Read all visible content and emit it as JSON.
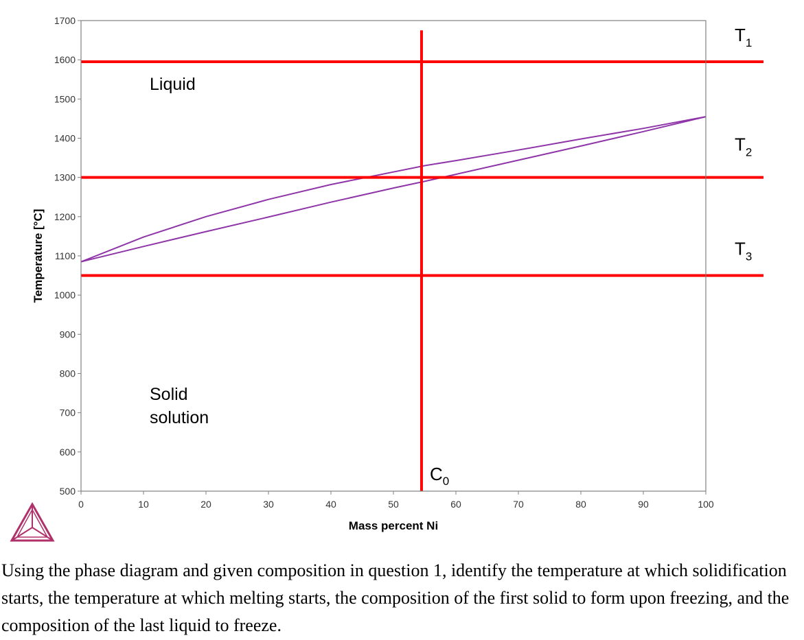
{
  "chart_data": {
    "type": "line",
    "xlabel": "Mass percent Ni",
    "ylabel": "Temperature [°C]",
    "xlim": [
      0,
      100
    ],
    "ylim": [
      500,
      1700
    ],
    "x_ticks": [
      0,
      10,
      20,
      30,
      40,
      50,
      60,
      70,
      80,
      90,
      100
    ],
    "y_ticks": [
      500,
      600,
      700,
      800,
      900,
      1000,
      1100,
      1200,
      1300,
      1400,
      1500,
      1600,
      1700
    ],
    "grid": false,
    "curve_color": "#8e35a8",
    "line_color": "#ff0000",
    "series": [
      {
        "x": [
          0,
          10,
          20,
          30,
          40,
          50,
          55,
          60,
          70,
          80,
          90,
          100
        ],
        "y": [
          1085,
          1148,
          1200,
          1244,
          1282,
          1314,
          1330,
          1343,
          1370,
          1398,
          1425,
          1455
        ]
      },
      {
        "x": [
          0,
          10,
          20,
          30,
          40,
          50,
          55,
          60,
          70,
          80,
          90,
          100
        ],
        "y": [
          1085,
          1124,
          1162,
          1199,
          1237,
          1273,
          1290,
          1308,
          1344,
          1380,
          1417,
          1455
        ]
      }
    ],
    "horizontal_lines": [
      {
        "y": 1595,
        "label": "T",
        "sub": "1"
      },
      {
        "y": 1300,
        "label": "T",
        "sub": "2"
      },
      {
        "y": 1050,
        "label": "T",
        "sub": "3"
      }
    ],
    "vertical_line": {
      "x": 54.5,
      "y_top": 1675,
      "label": "C",
      "sub": "0"
    },
    "annotations": {
      "liquid": "Liquid",
      "solid_1": "Solid",
      "solid_2": "solution"
    }
  },
  "question": "Using the phase diagram and given composition in question 1, identify the temperature at which solidification starts, the temperature at which melting starts, the composition of the first solid to form upon freezing, and the composition of the last liquid to freeze."
}
